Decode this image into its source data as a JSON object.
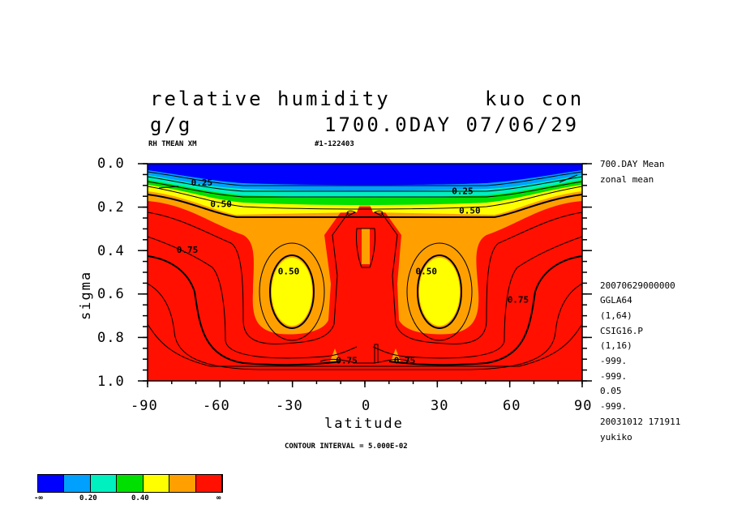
{
  "header": {
    "title_left": "relative humidity",
    "title_right": "kuo con",
    "units": "g/g",
    "time_stamp": "1700.0DAY 07/06/29",
    "var_label": "RH TMEAN XM",
    "run_id": "#1-122403"
  },
  "side_info": [
    "700.DAY Mean",
    "zonal mean",
    "20070629000000",
    "GGLA64",
    "(1,64)",
    "CSIG16.P",
    "(1,16)",
    "-999.",
    "-999.",
    "0.05",
    "-999.",
    "20031012 171911",
    "yukiko"
  ],
  "footer": {
    "contour_interval": "CONTOUR INTERVAL = 5.000E-02"
  },
  "colorbar": {
    "colors": [
      "#0000ff",
      "#00a0ff",
      "#00f0c0",
      "#00e000",
      "#ffff00",
      "#ffa000",
      "#ff1000"
    ],
    "labels": [
      "-∞",
      "0.20",
      "0.40",
      "∞"
    ]
  },
  "chart_data": {
    "type": "contour",
    "title": "relative humidity",
    "xlabel": "latitude",
    "ylabel": "sigma",
    "xlim": [
      -90,
      90
    ],
    "ylim": [
      1.0,
      0.0
    ],
    "x_ticks": [
      -90,
      -60,
      -30,
      0,
      30,
      60,
      90
    ],
    "x_tick_labels": [
      "-90",
      "-60",
      "-30",
      "0",
      "30",
      "60",
      "90"
    ],
    "y_ticks": [
      0.0,
      0.2,
      0.4,
      0.6,
      0.8,
      1.0
    ],
    "y_tick_labels": [
      "0.0",
      "0.2",
      "0.4",
      "0.6",
      "0.8",
      "1.0"
    ],
    "contour_interval": 0.05,
    "levels": [
      0.25,
      0.5,
      0.75
    ],
    "contour_labels": [
      {
        "text": "0.25",
        "lat": -72,
        "sigma": 0.1
      },
      {
        "text": "0.25",
        "lat": 36,
        "sigma": 0.14
      },
      {
        "text": "0.50",
        "lat": -64,
        "sigma": 0.2
      },
      {
        "text": "0.50",
        "lat": 39,
        "sigma": 0.23
      },
      {
        "text": "0.75",
        "lat": -78,
        "sigma": 0.41
      },
      {
        "text": "0.75",
        "lat": 59,
        "sigma": 0.64
      },
      {
        "text": "0.50",
        "lat": -36,
        "sigma": 0.51
      },
      {
        "text": "0.50",
        "lat": 21,
        "sigma": 0.51
      },
      {
        "text": "0.75",
        "lat": -12,
        "sigma": 0.92
      },
      {
        "text": "0.75",
        "lat": 12,
        "sigma": 0.92
      }
    ]
  }
}
